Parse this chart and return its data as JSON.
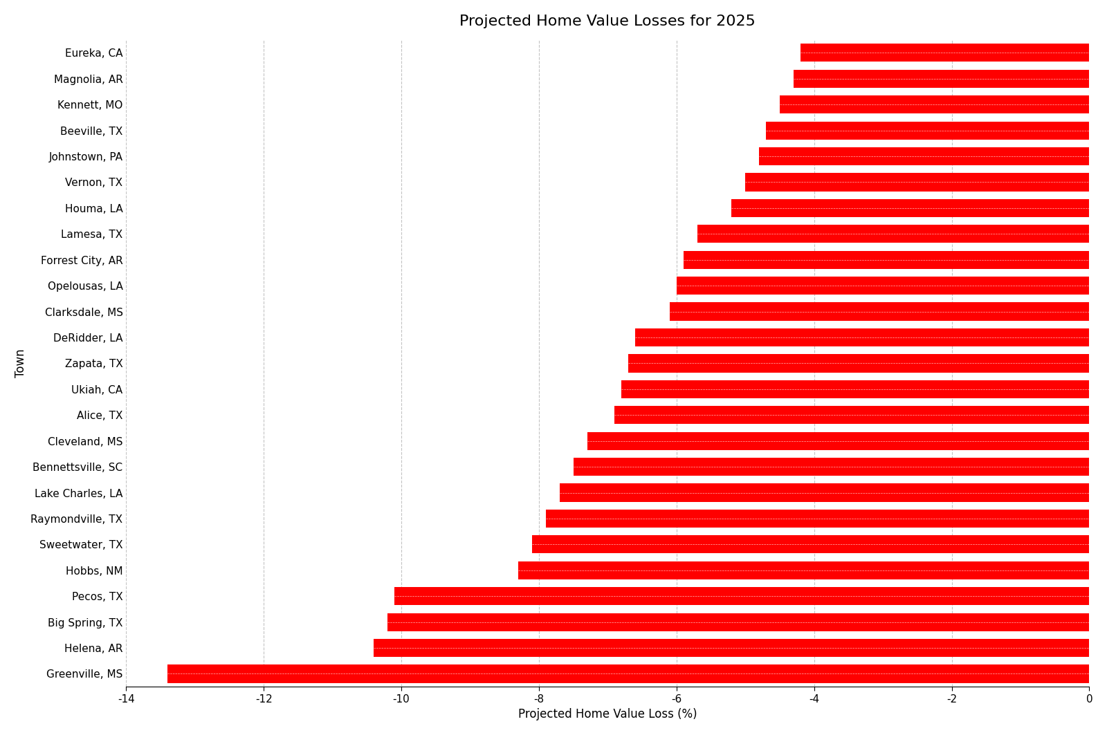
{
  "title": "Projected Home Value Losses for 2025",
  "xlabel": "Projected Home Value Loss (%)",
  "ylabel": "Town",
  "towns": [
    "Eureka, CA",
    "Magnolia, AR",
    "Kennett, MO",
    "Beeville, TX",
    "Johnstown, PA",
    "Vernon, TX",
    "Houma, LA",
    "Lamesa, TX",
    "Forrest City, AR",
    "Opelousas, LA",
    "Clarksdale, MS",
    "DeRidder, LA",
    "Zapata, TX",
    "Ukiah, CA",
    "Alice, TX",
    "Cleveland, MS",
    "Bennettsville, SC",
    "Lake Charles, LA",
    "Raymondville, TX",
    "Sweetwater, TX",
    "Hobbs, NM",
    "Pecos, TX",
    "Big Spring, TX",
    "Helena, AR",
    "Greenville, MS"
  ],
  "values": [
    -4.2,
    -4.3,
    -4.5,
    -4.7,
    -4.8,
    -5.0,
    -5.2,
    -5.7,
    -5.9,
    -6.0,
    -6.1,
    -6.6,
    -6.7,
    -6.8,
    -6.9,
    -7.3,
    -7.5,
    -7.7,
    -7.9,
    -8.1,
    -8.3,
    -10.1,
    -10.2,
    -10.4,
    -13.4
  ],
  "bar_color": "#FF0000",
  "background_color": "#FFFFFF",
  "xlim": [
    -14,
    0
  ],
  "xticks": [
    -14,
    -12,
    -10,
    -8,
    -6,
    -4,
    -2,
    0
  ],
  "grid_color": "#AAAAAA",
  "title_fontsize": 16,
  "label_fontsize": 12,
  "tick_fontsize": 11
}
